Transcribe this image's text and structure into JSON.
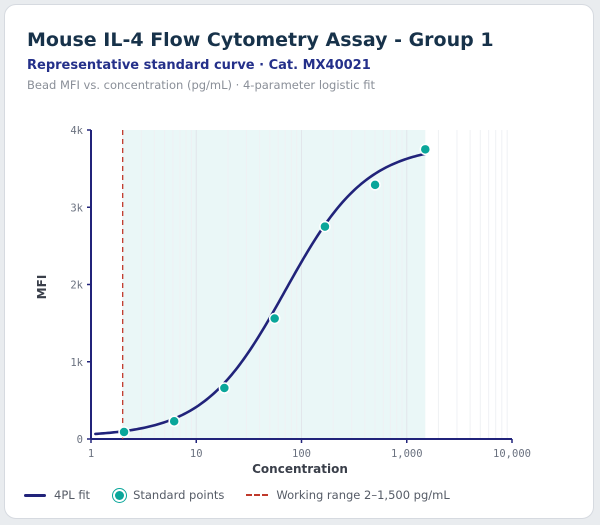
{
  "header": {
    "title": "Mouse IL-4 Flow Cytometry Assay - Group 1",
    "subtitle": "Representative standard curve · Cat. MX40021",
    "caption": "Bead MFI vs. concentration (pg/mL) · 4-parameter logistic fit"
  },
  "chart_data": {
    "type": "scatter",
    "xlabel": "Concentration",
    "ylabel": "MFI",
    "x_scale": "log",
    "xlim": [
      1,
      10000
    ],
    "ylim": [
      0,
      4000
    ],
    "x_ticks": [
      1,
      10,
      100,
      1000,
      10000
    ],
    "x_tick_labels": [
      "1",
      "10",
      "100",
      "1,000",
      "10,000"
    ],
    "y_ticks": [
      0,
      1000,
      2000,
      3000,
      4000
    ],
    "y_tick_labels": [
      "0",
      "1k",
      "2k",
      "3k",
      "4k"
    ],
    "grid": "vertical-minor-log",
    "legend_position": "bottom-left",
    "series": [
      {
        "name": "Standard points",
        "kind": "points",
        "color": "#0aa69a",
        "x": [
          2.06,
          6.17,
          18.5,
          55.6,
          167,
          500,
          1500
        ],
        "y": [
          90,
          230,
          660,
          1560,
          2750,
          3290,
          3750
        ]
      },
      {
        "name": "4PL fit",
        "kind": "curve",
        "color": "#21237a",
        "fit": {
          "bottom": 30,
          "top": 3810,
          "ec50": 70,
          "hill": 1.12
        },
        "x_range": [
          1.1,
          1500
        ]
      }
    ],
    "annotations": [
      {
        "name": "Working range 2–1,500 pg/mL",
        "kind": "range",
        "x_start": 2,
        "x_end": 1500,
        "color": "#c0392b",
        "fill": "#eaf7f7"
      }
    ]
  }
}
